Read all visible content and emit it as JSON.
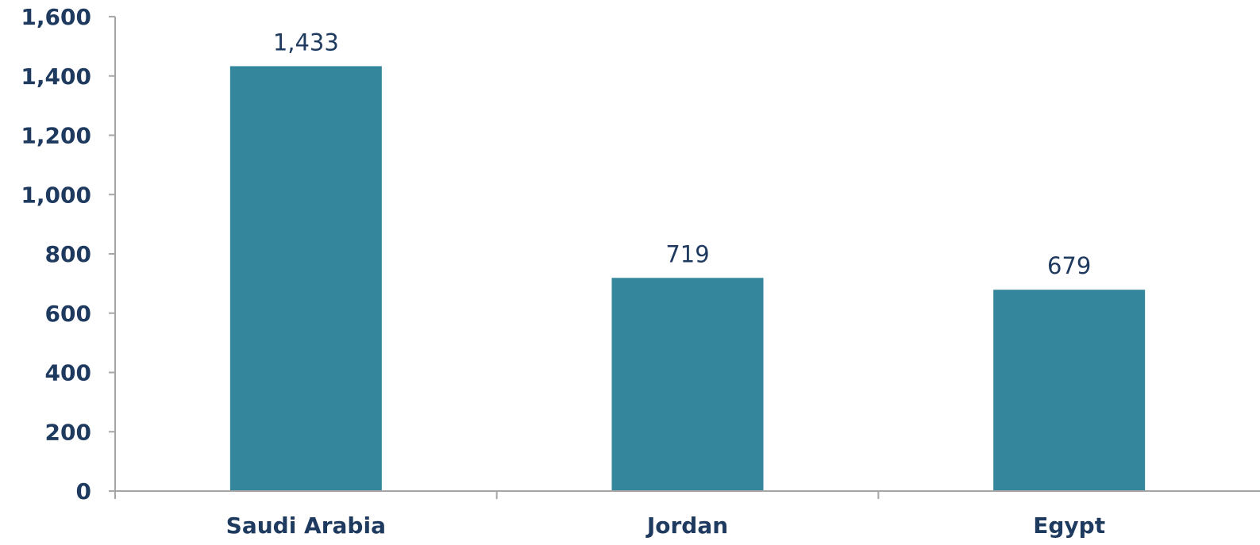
{
  "chart_data": {
    "type": "bar",
    "title": "",
    "xlabel": "",
    "ylabel": "",
    "categories": [
      "Saudi Arabia",
      "Jordan",
      "Egypt"
    ],
    "values": [
      1433,
      719,
      679
    ],
    "value_labels": [
      "1,433",
      "719",
      "679"
    ],
    "ylim": [
      0,
      1600
    ],
    "yticks": [
      0,
      200,
      400,
      600,
      800,
      1000,
      1200,
      1400,
      1600
    ],
    "ytick_labels": [
      "0",
      "200",
      "400",
      "600",
      "800",
      "1,000",
      "1,200",
      "1,400",
      "1,600"
    ],
    "grid": false,
    "legend": "none",
    "colors": {
      "bar": "#33869c",
      "text": "#1f3a5f",
      "axis": "#a6a6a6"
    }
  }
}
